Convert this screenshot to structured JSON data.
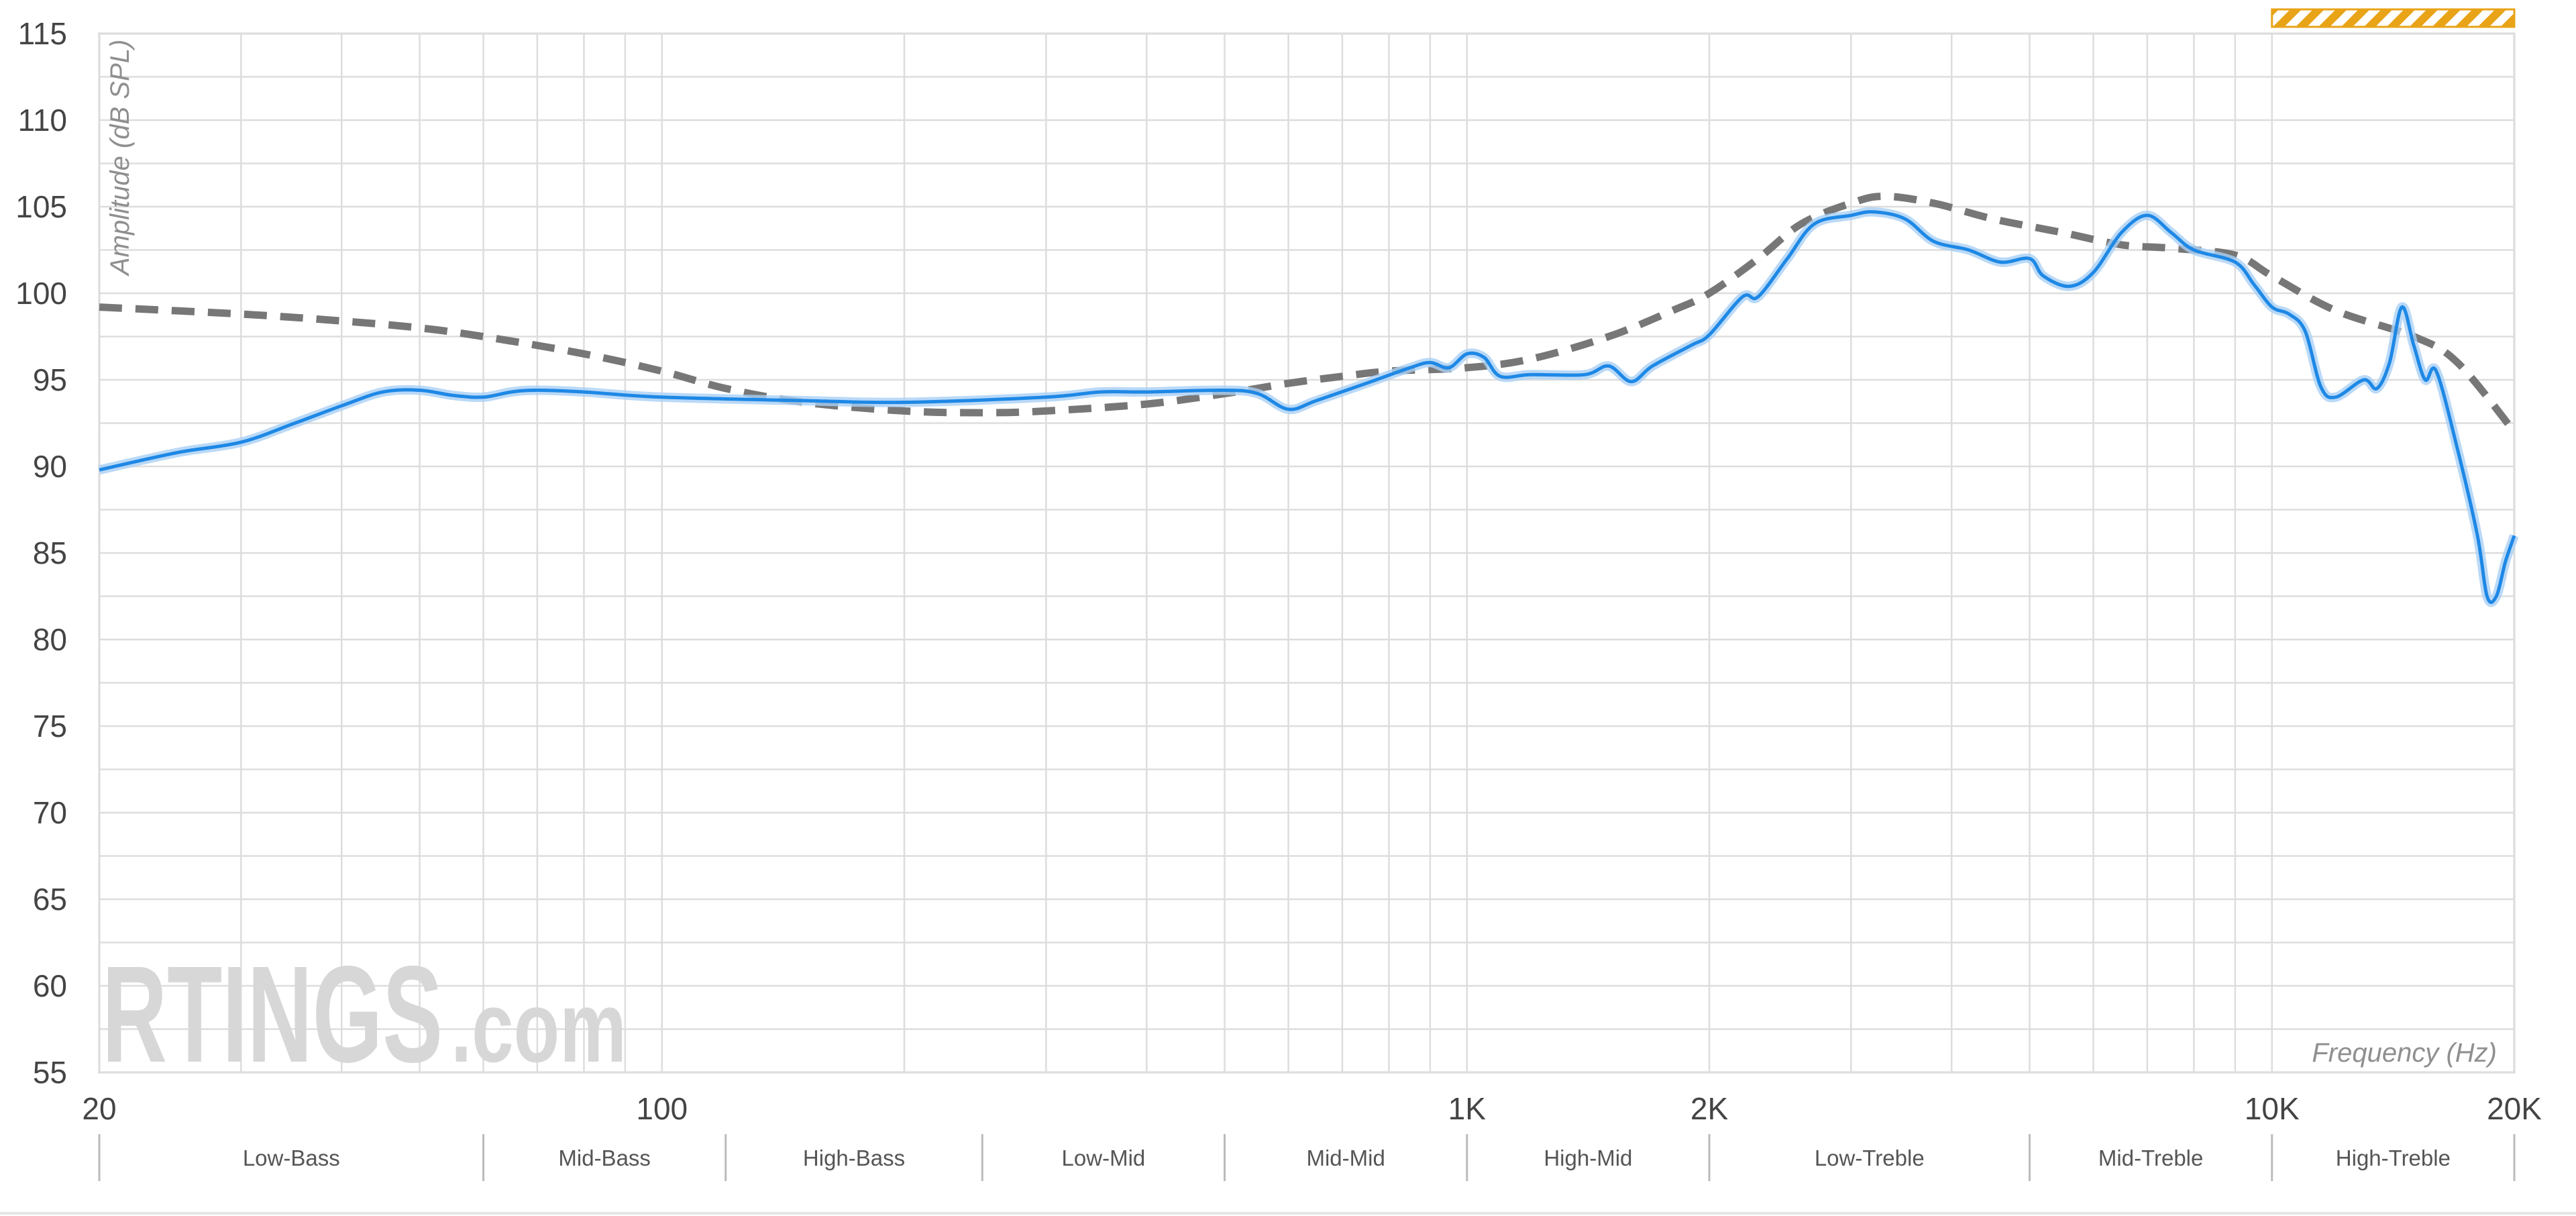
{
  "chart_data": {
    "type": "line",
    "ylabel": "Amplitude (dB SPL)",
    "xlabel": "Frequency (Hz)",
    "x_scale": "log",
    "xlim": [
      20,
      20000
    ],
    "ylim": [
      55,
      115
    ],
    "y_ticks": [
      55,
      60,
      65,
      70,
      75,
      80,
      85,
      90,
      95,
      100,
      105,
      110,
      115
    ],
    "x_ticks": [
      {
        "value": 20,
        "label": "20"
      },
      {
        "value": 100,
        "label": "100"
      },
      {
        "value": 1000,
        "label": "1K"
      },
      {
        "value": 2000,
        "label": "2K"
      },
      {
        "value": 10000,
        "label": "10K"
      },
      {
        "value": 20000,
        "label": "20K"
      }
    ],
    "grid": true,
    "bands": [
      {
        "label": "Low-Bass",
        "from": 20,
        "to": 60
      },
      {
        "label": "Mid-Bass",
        "from": 60,
        "to": 120
      },
      {
        "label": "High-Bass",
        "from": 120,
        "to": 250
      },
      {
        "label": "Low-Mid",
        "from": 250,
        "to": 500
      },
      {
        "label": "Mid-Mid",
        "from": 500,
        "to": 1000
      },
      {
        "label": "High-Mid",
        "from": 1000,
        "to": 2000
      },
      {
        "label": "Low-Treble",
        "from": 2000,
        "to": 5000
      },
      {
        "label": "Mid-Treble",
        "from": 5000,
        "to": 10000
      },
      {
        "label": "High-Treble",
        "from": 10000,
        "to": 20000
      }
    ],
    "highlight_range": {
      "from": 10000,
      "to": 20000,
      "color": "#e8a317"
    },
    "series": [
      {
        "role": "target",
        "style": "dashed",
        "color": "#777777",
        "points": [
          [
            20,
            99.2
          ],
          [
            30,
            98.8
          ],
          [
            40,
            98.4
          ],
          [
            50,
            98
          ],
          [
            60,
            97.5
          ],
          [
            80,
            96.5
          ],
          [
            100,
            95.5
          ],
          [
            120,
            94.5
          ],
          [
            150,
            93.7
          ],
          [
            200,
            93.2
          ],
          [
            250,
            93.1
          ],
          [
            300,
            93.2
          ],
          [
            400,
            93.6
          ],
          [
            500,
            94.2
          ],
          [
            600,
            94.8
          ],
          [
            700,
            95.2
          ],
          [
            800,
            95.5
          ],
          [
            1000,
            95.7
          ],
          [
            1200,
            96.2
          ],
          [
            1500,
            97.5
          ],
          [
            1800,
            99
          ],
          [
            2000,
            100
          ],
          [
            2300,
            102
          ],
          [
            2600,
            104
          ],
          [
            3000,
            105.2
          ],
          [
            3300,
            105.6
          ],
          [
            3800,
            105.2
          ],
          [
            4500,
            104.3
          ],
          [
            5500,
            103.5
          ],
          [
            6500,
            102.8
          ],
          [
            7500,
            102.6
          ],
          [
            9000,
            102.2
          ],
          [
            10000,
            101
          ],
          [
            12000,
            99
          ],
          [
            15000,
            97.5
          ],
          [
            17000,
            96
          ],
          [
            20000,
            92
          ]
        ]
      },
      {
        "role": "measured",
        "style": "solid",
        "color": "#1e88e5",
        "points": [
          [
            20,
            89.8
          ],
          [
            25,
            90.8
          ],
          [
            30,
            91.4
          ],
          [
            35,
            92.5
          ],
          [
            40,
            93.5
          ],
          [
            45,
            94.3
          ],
          [
            50,
            94.4
          ],
          [
            55,
            94.1
          ],
          [
            60,
            94
          ],
          [
            65,
            94.3
          ],
          [
            70,
            94.4
          ],
          [
            80,
            94.3
          ],
          [
            100,
            94
          ],
          [
            150,
            93.8
          ],
          [
            200,
            93.7
          ],
          [
            300,
            94
          ],
          [
            350,
            94.3
          ],
          [
            400,
            94.3
          ],
          [
            500,
            94.4
          ],
          [
            550,
            94.2
          ],
          [
            600,
            93.3
          ],
          [
            650,
            93.8
          ],
          [
            750,
            94.8
          ],
          [
            850,
            95.7
          ],
          [
            900,
            96
          ],
          [
            950,
            95.7
          ],
          [
            1000,
            96.5
          ],
          [
            1050,
            96.3
          ],
          [
            1100,
            95.2
          ],
          [
            1200,
            95.3
          ],
          [
            1400,
            95.3
          ],
          [
            1500,
            95.8
          ],
          [
            1600,
            94.9
          ],
          [
            1700,
            95.8
          ],
          [
            1900,
            97
          ],
          [
            2000,
            97.6
          ],
          [
            2200,
            99.8
          ],
          [
            2300,
            99.8
          ],
          [
            2500,
            102
          ],
          [
            2700,
            104
          ],
          [
            3000,
            104.5
          ],
          [
            3200,
            104.7
          ],
          [
            3500,
            104.3
          ],
          [
            3800,
            103
          ],
          [
            4200,
            102.5
          ],
          [
            4600,
            101.8
          ],
          [
            5000,
            102
          ],
          [
            5200,
            101
          ],
          [
            5600,
            100.4
          ],
          [
            6000,
            101.2
          ],
          [
            6500,
            103.5
          ],
          [
            7000,
            104.5
          ],
          [
            7500,
            103.5
          ],
          [
            8000,
            102.5
          ],
          [
            9000,
            101.8
          ],
          [
            9500,
            100.5
          ],
          [
            10000,
            99.2
          ],
          [
            10500,
            98.8
          ],
          [
            11000,
            97.8
          ],
          [
            11500,
            94.6
          ],
          [
            12000,
            94
          ],
          [
            13000,
            95
          ],
          [
            13500,
            94.5
          ],
          [
            14000,
            96
          ],
          [
            14500,
            99.2
          ],
          [
            15000,
            97
          ],
          [
            15500,
            95
          ],
          [
            16000,
            95.5
          ],
          [
            17000,
            91
          ],
          [
            18000,
            86
          ],
          [
            18500,
            82.5
          ],
          [
            19000,
            82.5
          ],
          [
            19500,
            84.5
          ],
          [
            20000,
            86
          ]
        ]
      }
    ]
  }
}
